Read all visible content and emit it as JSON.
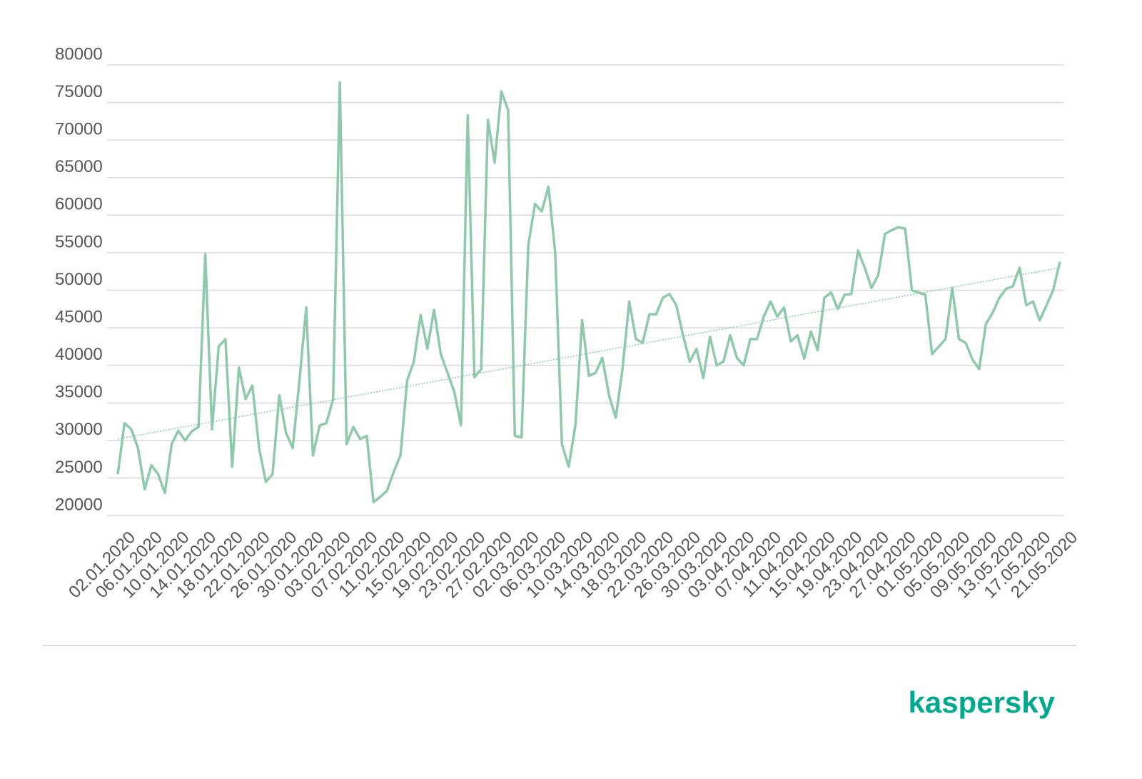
{
  "chart_data": {
    "type": "line",
    "categories": [
      "02.01.2020",
      null,
      null,
      null,
      "06.01.2020",
      null,
      null,
      null,
      "10.01.2020",
      null,
      null,
      null,
      "14.01.2020",
      null,
      null,
      null,
      "18.01.2020",
      null,
      null,
      null,
      "22.01.2020",
      null,
      null,
      null,
      "26.01.2020",
      null,
      null,
      null,
      "30.01.2020",
      null,
      null,
      null,
      "03.02.2020",
      null,
      null,
      null,
      "07.02.2020",
      null,
      null,
      null,
      "11.02.2020",
      null,
      null,
      null,
      "15.02.2020",
      null,
      null,
      null,
      "19.02.2020",
      null,
      null,
      null,
      "23.02.2020",
      null,
      null,
      null,
      "27.02.2020",
      null,
      null,
      null,
      "02.03.2020",
      null,
      null,
      null,
      "06.03.2020",
      null,
      null,
      null,
      "10.03.2020",
      null,
      null,
      null,
      "14.03.2020",
      null,
      null,
      null,
      "18.03.2020",
      null,
      null,
      null,
      "22.03.2020",
      null,
      null,
      null,
      "26.03.2020",
      null,
      null,
      null,
      "30.03.2020",
      null,
      null,
      null,
      "03.04.2020",
      null,
      null,
      null,
      "07.04.2020",
      null,
      null,
      null,
      "11.04.2020",
      null,
      null,
      null,
      "15.04.2020",
      null,
      null,
      null,
      "19.04.2020",
      null,
      null,
      null,
      "23.04.2020",
      null,
      null,
      null,
      "27.04.2020",
      null,
      null,
      null,
      "01.05.2020",
      null,
      null,
      null,
      "05.05.2020",
      null,
      null,
      null,
      "09.05.2020",
      null,
      null,
      null,
      "13.05.2020",
      null,
      null,
      null,
      "17.05.2020",
      null,
      null,
      null,
      "21.05.2020"
    ],
    "series": [
      {
        "color": "#8fc9ab",
        "values": [
          25500,
          32300,
          31500,
          29000,
          23500,
          26700,
          25500,
          23000,
          29500,
          31300,
          30000,
          31200,
          31800,
          54800,
          31500,
          42500,
          43500,
          26500,
          39700,
          35500,
          37300,
          29000,
          24500,
          25500,
          36000,
          31000,
          29000,
          38000,
          47700,
          28000,
          32000,
          32300,
          35500,
          77700,
          29500,
          31800,
          30200,
          30600,
          21800,
          22500,
          23300,
          25800,
          28000,
          38000,
          40500,
          46700,
          42200,
          47400,
          41500,
          39000,
          36500,
          32000,
          73300,
          38400,
          39500,
          72700,
          67000,
          76500,
          74000,
          30600,
          30400,
          56000,
          61500,
          60500,
          63800,
          55000,
          29500,
          26500,
          32000,
          46000,
          38600,
          39000,
          41000,
          36000,
          33000,
          39500,
          48500,
          43500,
          43000,
          46800,
          46800,
          49000,
          49500,
          48000,
          44000,
          40500,
          42200,
          38300,
          43800,
          40000,
          40500,
          44000,
          41000,
          40000,
          43500,
          43500,
          46500,
          48500,
          46500,
          47700,
          43200,
          44000,
          40900,
          44500,
          42000,
          49000,
          49700,
          47500,
          49400,
          49500,
          55300,
          53000,
          50300,
          52000,
          57500,
          58000,
          58400,
          58200,
          50000,
          49700,
          49400,
          41500,
          42500,
          43500,
          50300,
          43500,
          43000,
          40800,
          39500,
          45500,
          47000,
          49000,
          50200,
          50500,
          53000,
          48000,
          48500,
          46000,
          48000,
          50000,
          53800
        ]
      }
    ],
    "trendline": {
      "color": "#8fc9ab",
      "values": [
        30200,
        53000
      ]
    },
    "ylim": [
      20000,
      80000
    ],
    "yticks": [
      20000,
      25000,
      30000,
      35000,
      40000,
      45000,
      50000,
      55000,
      60000,
      65000,
      70000,
      75000,
      80000
    ],
    "grid": true
  },
  "brand": "kaspersky"
}
